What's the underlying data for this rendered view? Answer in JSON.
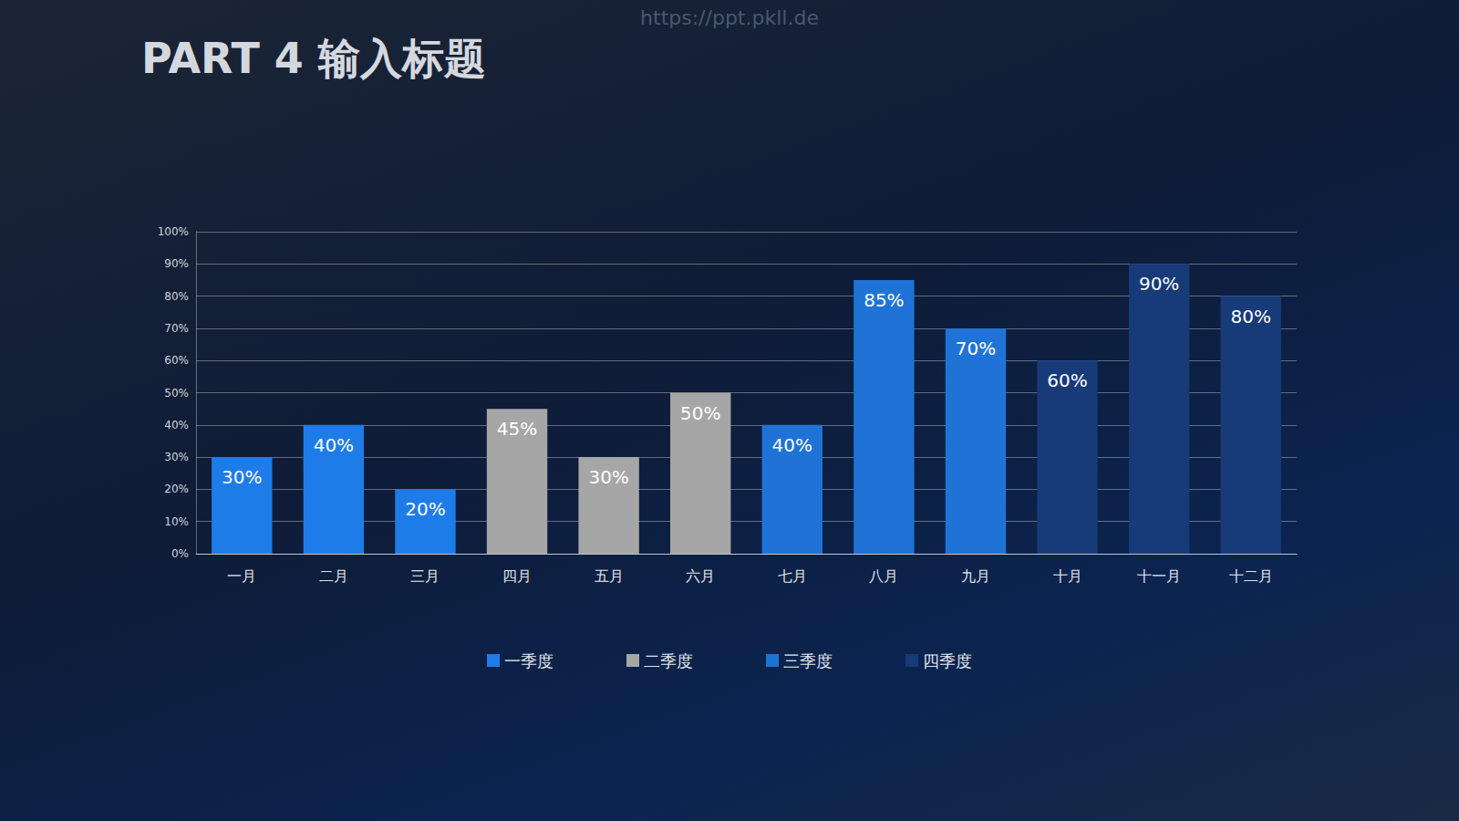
{
  "chart_data": {
    "type": "bar",
    "title": "PART 4 输入标题",
    "annotations": [
      "https://ppt.pkll.de"
    ],
    "categories": [
      "一月",
      "二月",
      "三月",
      "四月",
      "五月",
      "六月",
      "七月",
      "八月",
      "九月",
      "十月",
      "十一月",
      "十二月"
    ],
    "series": [
      {
        "name": "一季度",
        "color": "#1e7ce8",
        "values": [
          30,
          40,
          20,
          null,
          null,
          null,
          null,
          null,
          null,
          null,
          null,
          null
        ],
        "value_labels": [
          "30%",
          "40%",
          "20%",
          null,
          null,
          null,
          null,
          null,
          null,
          null,
          null,
          null
        ]
      },
      {
        "name": "二季度",
        "color": "#a6a6a6",
        "values": [
          null,
          null,
          null,
          45,
          30,
          50,
          null,
          null,
          null,
          null,
          null,
          null
        ],
        "value_labels": [
          null,
          null,
          null,
          "45%",
          "30%",
          "50%",
          null,
          null,
          null,
          null,
          null,
          null
        ]
      },
      {
        "name": "三季度",
        "color": "#1f73d6",
        "values": [
          null,
          null,
          null,
          null,
          null,
          null,
          40,
          85,
          70,
          null,
          null,
          null
        ],
        "value_labels": [
          null,
          null,
          null,
          null,
          null,
          null,
          "40%",
          "85%",
          "70%",
          null,
          null,
          null
        ]
      },
      {
        "name": "四季度",
        "color": "#173a78",
        "values": [
          null,
          null,
          null,
          null,
          null,
          null,
          null,
          null,
          null,
          60,
          90,
          80
        ],
        "value_labels": [
          null,
          null,
          null,
          null,
          null,
          null,
          null,
          null,
          null,
          "60%",
          "90%",
          "80%"
        ]
      }
    ],
    "ylim": [
      0,
      100
    ],
    "yticks": [
      {
        "value": 0,
        "label": "0%"
      },
      {
        "value": 10,
        "label": "10%"
      },
      {
        "value": 20,
        "label": "20%"
      },
      {
        "value": 30,
        "label": "30%"
      },
      {
        "value": 40,
        "label": "40%"
      },
      {
        "value": 50,
        "label": "50%"
      },
      {
        "value": 60,
        "label": "60%"
      },
      {
        "value": 70,
        "label": "70%"
      },
      {
        "value": 80,
        "label": "80%"
      },
      {
        "value": 90,
        "label": "90%"
      },
      {
        "value": 100,
        "label": "100%"
      }
    ],
    "grid": true,
    "legend": "bottom",
    "data_labels": true
  }
}
